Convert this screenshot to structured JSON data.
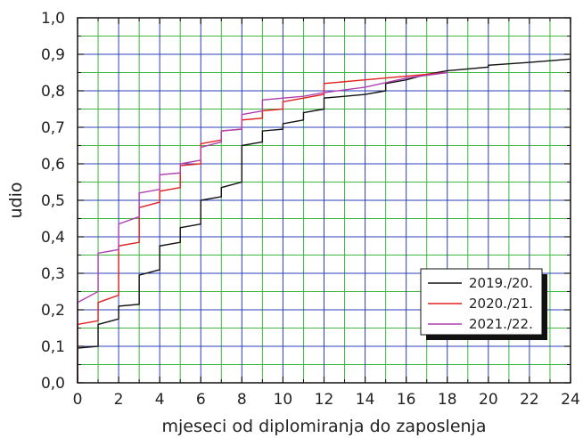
{
  "chart_data": {
    "type": "line",
    "step": true,
    "xlabel": "mjeseci od diplomiranja do zaposlenja",
    "ylabel": "udio",
    "xlim": [
      0,
      24
    ],
    "ylim": [
      0,
      1.0
    ],
    "x_ticks": [
      0,
      2,
      4,
      6,
      8,
      10,
      12,
      14,
      16,
      18,
      20,
      22,
      24
    ],
    "y_ticks": [
      0.0,
      0.1,
      0.2,
      0.3,
      0.4,
      0.5,
      0.6,
      0.7,
      0.8,
      0.9,
      1.0
    ],
    "y_tick_labels": [
      "0,0",
      "0,1",
      "0,2",
      "0,3",
      "0,4",
      "0,5",
      "0,6",
      "0,7",
      "0,8",
      "0,9",
      "1,0"
    ],
    "grid": true,
    "grid_colors": {
      "major": "#2b3fb8",
      "minor": "#3fb83f"
    },
    "legend_position": "lower-right",
    "series": [
      {
        "name": "2019./20.",
        "color": "#111111",
        "points": [
          [
            0,
            0
          ],
          [
            0,
            0.095
          ],
          [
            1,
            0.1
          ],
          [
            1,
            0.16
          ],
          [
            2,
            0.175
          ],
          [
            2,
            0.21
          ],
          [
            3,
            0.215
          ],
          [
            3,
            0.295
          ],
          [
            4,
            0.31
          ],
          [
            4,
            0.375
          ],
          [
            5,
            0.385
          ],
          [
            5,
            0.425
          ],
          [
            6,
            0.435
          ],
          [
            6,
            0.5
          ],
          [
            7,
            0.51
          ],
          [
            7,
            0.535
          ],
          [
            8,
            0.55
          ],
          [
            8,
            0.65
          ],
          [
            9,
            0.66
          ],
          [
            9,
            0.69
          ],
          [
            10,
            0.695
          ],
          [
            10,
            0.71
          ],
          [
            11,
            0.72
          ],
          [
            11,
            0.74
          ],
          [
            12,
            0.75
          ],
          [
            12,
            0.78
          ],
          [
            13,
            0.785
          ],
          [
            14,
            0.79
          ],
          [
            15,
            0.8
          ],
          [
            15,
            0.82
          ],
          [
            16,
            0.83
          ],
          [
            17,
            0.845
          ],
          [
            18,
            0.855
          ],
          [
            19,
            0.86
          ],
          [
            20,
            0.865
          ],
          [
            20,
            0.87
          ],
          [
            22,
            0.878
          ],
          [
            24,
            0.887
          ]
        ]
      },
      {
        "name": "2020./21.",
        "color": "#e02020",
        "points": [
          [
            0,
            0
          ],
          [
            0,
            0.16
          ],
          [
            1,
            0.17
          ],
          [
            1,
            0.22
          ],
          [
            2,
            0.24
          ],
          [
            2,
            0.375
          ],
          [
            3,
            0.385
          ],
          [
            3,
            0.48
          ],
          [
            4,
            0.495
          ],
          [
            4,
            0.525
          ],
          [
            5,
            0.535
          ],
          [
            5,
            0.595
          ],
          [
            6,
            0.6
          ],
          [
            6,
            0.655
          ],
          [
            7,
            0.665
          ],
          [
            7,
            0.69
          ],
          [
            8,
            0.695
          ],
          [
            8,
            0.72
          ],
          [
            9,
            0.725
          ],
          [
            9,
            0.745
          ],
          [
            10,
            0.75
          ],
          [
            10,
            0.77
          ],
          [
            11,
            0.78
          ],
          [
            12,
            0.79
          ],
          [
            12,
            0.82
          ],
          [
            14,
            0.83
          ],
          [
            16,
            0.84
          ],
          [
            18,
            0.85
          ]
        ]
      },
      {
        "name": "2021./22.",
        "color": "#b03fb0",
        "points": [
          [
            0,
            0
          ],
          [
            0,
            0.22
          ],
          [
            1,
            0.25
          ],
          [
            1,
            0.355
          ],
          [
            2,
            0.365
          ],
          [
            2,
            0.435
          ],
          [
            3,
            0.455
          ],
          [
            3,
            0.52
          ],
          [
            4,
            0.53
          ],
          [
            4,
            0.57
          ],
          [
            5,
            0.575
          ],
          [
            5,
            0.6
          ],
          [
            6,
            0.61
          ],
          [
            6,
            0.645
          ],
          [
            7,
            0.66
          ],
          [
            7,
            0.69
          ],
          [
            8,
            0.695
          ],
          [
            8,
            0.735
          ],
          [
            9,
            0.745
          ],
          [
            9,
            0.775
          ],
          [
            10,
            0.78
          ],
          [
            11,
            0.785
          ],
          [
            12,
            0.795
          ],
          [
            14,
            0.81
          ],
          [
            16,
            0.835
          ],
          [
            18,
            0.85
          ]
        ]
      }
    ]
  }
}
